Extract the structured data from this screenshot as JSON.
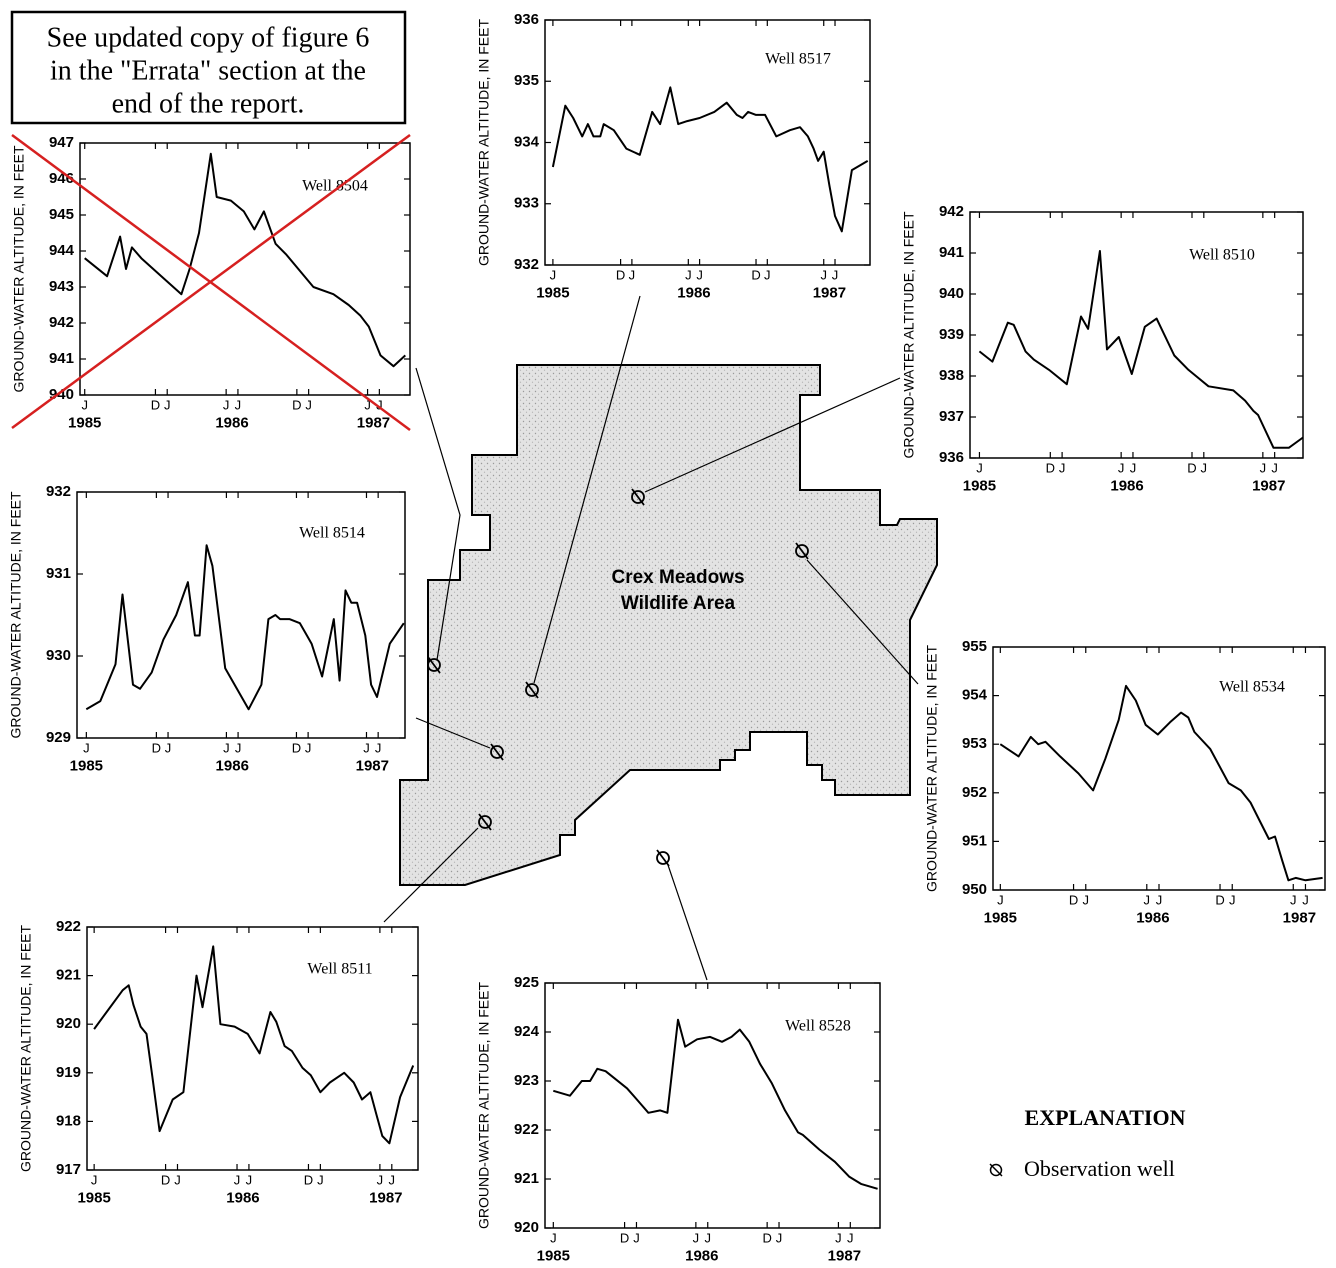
{
  "errata": [
    "See updated copy of figure 6",
    "in the \"Errata\" section at the",
    "end of the report."
  ],
  "map": {
    "label": [
      "Crex Meadows",
      "Wildlife Area"
    ]
  },
  "explanation": {
    "title": "EXPLANATION",
    "item": "Observation well"
  },
  "chart_data": [
    {
      "type": "line",
      "title": "Well 8504",
      "ylabel": "GROUND-WATER ALTITUDE, IN FEET",
      "color": "#000000",
      "x": [
        0,
        1.9,
        3.0,
        3.5,
        4.0,
        4.8,
        6.5,
        8.2,
        8.9,
        9.7,
        10.7,
        11.2,
        12.4,
        13.5,
        14.4,
        15.2,
        16.2,
        17.1,
        19.4,
        21.1,
        22.4,
        23.4,
        24.1,
        25.1,
        26.2,
        27.2
      ],
      "values": [
        943.8,
        943.3,
        944.4,
        943.5,
        944.1,
        943.8,
        943.3,
        942.8,
        943.5,
        944.5,
        946.7,
        945.5,
        945.4,
        945.1,
        944.6,
        945.1,
        944.2,
        943.9,
        943.0,
        942.8,
        942.5,
        942.2,
        941.9,
        941.1,
        940.8,
        941.1
      ],
      "xlim": [
        -0.4,
        27.6
      ],
      "ylim": [
        940,
        947
      ],
      "yticks": [
        940,
        941,
        942,
        943,
        944,
        945,
        946,
        947
      ],
      "xticks": [
        {
          "value": 0,
          "label": "J"
        },
        {
          "value": 6,
          "label": "D"
        },
        {
          "value": 7,
          "label": "J"
        },
        {
          "value": 12,
          "label": "J"
        },
        {
          "value": 13,
          "label": "J"
        },
        {
          "value": 18,
          "label": "D"
        },
        {
          "value": 19,
          "label": "J"
        },
        {
          "value": 24,
          "label": "J"
        },
        {
          "value": 25,
          "label": "J"
        }
      ],
      "year_ticks": [
        {
          "value": 0,
          "label": "1985"
        },
        {
          "value": 12.5,
          "label": "1986"
        },
        {
          "value": 24.5,
          "label": "1987"
        }
      ]
    },
    {
      "type": "line",
      "title": "Well 8517",
      "ylabel": "GROUND-WATER ALTITUDE, IN FEET",
      "color": "#000000",
      "x": [
        0,
        1.1,
        1.8,
        2.6,
        3.1,
        3.6,
        4.2,
        4.5,
        5.4,
        6.5,
        7.7,
        8.8,
        9.5,
        10.4,
        11.1,
        11.9,
        13.0,
        14.3,
        15.4,
        16.3,
        16.8,
        17.3,
        18.0,
        18.8,
        19.8,
        21.0,
        21.9,
        22.6,
        23.1,
        23.5,
        24.0,
        24.5,
        25.0,
        25.6,
        26.5,
        27.9
      ],
      "values": [
        933.6,
        934.6,
        934.4,
        934.1,
        934.3,
        934.1,
        934.1,
        934.3,
        934.2,
        933.9,
        933.8,
        934.5,
        934.3,
        934.9,
        934.3,
        934.35,
        934.4,
        934.5,
        934.65,
        934.45,
        934.4,
        934.5,
        934.45,
        934.45,
        934.1,
        934.2,
        934.25,
        934.1,
        933.9,
        933.7,
        933.85,
        933.3,
        932.8,
        932.55,
        933.55,
        933.7
      ],
      "xlim": [
        -0.7,
        28.1
      ],
      "ylim": [
        932,
        936
      ],
      "yticks": [
        932,
        933,
        934,
        935,
        936
      ],
      "xticks": [
        {
          "value": 0,
          "label": "J"
        },
        {
          "value": 6,
          "label": "D"
        },
        {
          "value": 7,
          "label": "J"
        },
        {
          "value": 12,
          "label": "J"
        },
        {
          "value": 13,
          "label": "J"
        },
        {
          "value": 18,
          "label": "D"
        },
        {
          "value": 19,
          "label": "J"
        },
        {
          "value": 24,
          "label": "J"
        },
        {
          "value": 25,
          "label": "J"
        }
      ],
      "year_ticks": [
        {
          "value": 0,
          "label": "1985"
        },
        {
          "value": 12.5,
          "label": "1986"
        },
        {
          "value": 24.5,
          "label": "1987"
        }
      ]
    },
    {
      "type": "line",
      "title": "Well 8510",
      "ylabel": "GROUND-WATER ALTITUDE, IN FEET",
      "color": "#000000",
      "x": [
        0,
        1.1,
        2.4,
        2.9,
        3.9,
        4.6,
        5.9,
        7.4,
        8.6,
        9.2,
        10.2,
        10.8,
        11.8,
        12.9,
        14.0,
        15.0,
        16.5,
        17.7,
        19.4,
        21.5,
        22.5,
        23.2,
        23.6,
        24.9,
        26.2,
        27.4
      ],
      "values": [
        938.6,
        938.35,
        939.3,
        939.25,
        938.6,
        938.4,
        938.15,
        937.8,
        939.45,
        939.15,
        941.05,
        938.65,
        938.95,
        938.05,
        939.2,
        939.4,
        938.5,
        938.15,
        937.75,
        937.65,
        937.4,
        937.15,
        937.05,
        936.25,
        936.25,
        936.5
      ],
      "xlim": [
        -0.8,
        27.4
      ],
      "ylim": [
        936,
        942
      ],
      "yticks": [
        936,
        937,
        938,
        939,
        940,
        941,
        942
      ],
      "xticks": [
        {
          "value": 0,
          "label": "J"
        },
        {
          "value": 6,
          "label": "D"
        },
        {
          "value": 7,
          "label": "J"
        },
        {
          "value": 12,
          "label": "J"
        },
        {
          "value": 13,
          "label": "J"
        },
        {
          "value": 18,
          "label": "D"
        },
        {
          "value": 19,
          "label": "J"
        },
        {
          "value": 24,
          "label": "J"
        },
        {
          "value": 25,
          "label": "J"
        }
      ],
      "year_ticks": [
        {
          "value": 0,
          "label": "1985"
        },
        {
          "value": 12.5,
          "label": "1986"
        },
        {
          "value": 24.5,
          "label": "1987"
        }
      ]
    },
    {
      "type": "line",
      "title": "Well 8514",
      "ylabel": "GROUND-WATER ALTITUDE, IN FEET",
      "color": "#000000",
      "x": [
        0,
        1.2,
        2.5,
        3.1,
        4.0,
        4.6,
        5.6,
        6.6,
        7.7,
        8.7,
        9.3,
        9.7,
        10.3,
        10.8,
        11.9,
        12.9,
        13.9,
        15.0,
        15.6,
        16.2,
        16.6,
        17.4,
        18.3,
        19.3,
        20.2,
        21.2,
        21.7,
        22.2,
        22.7,
        23.2,
        23.9,
        24.4,
        24.9,
        26.0,
        27.2
      ],
      "values": [
        929.35,
        929.45,
        929.9,
        930.75,
        929.65,
        929.6,
        929.8,
        930.2,
        930.5,
        930.9,
        930.25,
        930.25,
        931.35,
        931.1,
        929.85,
        929.6,
        929.35,
        929.65,
        930.45,
        930.5,
        930.45,
        930.45,
        930.4,
        930.15,
        929.75,
        930.45,
        929.7,
        930.8,
        930.65,
        930.65,
        930.25,
        929.65,
        929.5,
        930.15,
        930.4
      ],
      "xlim": [
        -0.8,
        27.3
      ],
      "ylim": [
        929,
        932
      ],
      "yticks": [
        929,
        930,
        931,
        932
      ],
      "xticks": [
        {
          "value": 0,
          "label": "J"
        },
        {
          "value": 6,
          "label": "D"
        },
        {
          "value": 7,
          "label": "J"
        },
        {
          "value": 12,
          "label": "J"
        },
        {
          "value": 13,
          "label": "J"
        },
        {
          "value": 18,
          "label": "D"
        },
        {
          "value": 19,
          "label": "J"
        },
        {
          "value": 24,
          "label": "J"
        },
        {
          "value": 25,
          "label": "J"
        }
      ],
      "year_ticks": [
        {
          "value": 0,
          "label": "1985"
        },
        {
          "value": 12.5,
          "label": "1986"
        },
        {
          "value": 24.5,
          "label": "1987"
        }
      ]
    },
    {
      "type": "line",
      "title": "Well 8534",
      "ylabel": "GROUND-WATER ALTITUDE, IN FEET",
      "color": "#000000",
      "x": [
        0,
        1.5,
        2.5,
        3.1,
        3.7,
        4.9,
        6.4,
        7.6,
        8.6,
        9.7,
        10.3,
        11.1,
        11.9,
        12.9,
        13.9,
        14.8,
        15.4,
        15.9,
        17.2,
        18.7,
        19.7,
        20.5,
        21.3,
        22.0,
        22.5,
        23.1,
        23.6,
        24.2,
        25.0,
        26.4
      ],
      "values": [
        953.0,
        952.75,
        953.15,
        953.0,
        953.05,
        952.75,
        952.4,
        952.05,
        952.7,
        953.5,
        954.2,
        953.9,
        953.4,
        953.2,
        953.45,
        953.65,
        953.55,
        953.25,
        952.9,
        952.2,
        952.05,
        951.8,
        951.4,
        951.05,
        951.1,
        950.6,
        950.2,
        950.25,
        950.2,
        950.25
      ],
      "xlim": [
        -0.6,
        26.6
      ],
      "ylim": [
        950,
        955
      ],
      "yticks": [
        950,
        951,
        952,
        953,
        954,
        955
      ],
      "xticks": [
        {
          "value": 0,
          "label": "J"
        },
        {
          "value": 6,
          "label": "D"
        },
        {
          "value": 7,
          "label": "J"
        },
        {
          "value": 12,
          "label": "J"
        },
        {
          "value": 13,
          "label": "J"
        },
        {
          "value": 18,
          "label": "D"
        },
        {
          "value": 19,
          "label": "J"
        },
        {
          "value": 24,
          "label": "J"
        },
        {
          "value": 25,
          "label": "J"
        }
      ],
      "year_ticks": [
        {
          "value": 0,
          "label": "1985"
        },
        {
          "value": 12.5,
          "label": "1986"
        },
        {
          "value": 24.5,
          "label": "1987"
        }
      ]
    },
    {
      "type": "line",
      "title": "Well 8511",
      "ylabel": "GROUND-WATER ALTITUDE, IN FEET",
      "color": "#000000",
      "x": [
        0,
        1.2,
        2.4,
        2.9,
        3.3,
        3.9,
        4.4,
        4.9,
        5.5,
        6.6,
        7.5,
        8.6,
        9.1,
        10.0,
        10.6,
        11.8,
        12.9,
        13.9,
        14.8,
        15.3,
        16.0,
        16.6,
        17.5,
        18.2,
        19.0,
        19.8,
        21.0,
        21.8,
        22.5,
        23.2,
        23.7,
        24.2,
        24.8,
        25.7,
        26.8
      ],
      "values": [
        919.9,
        920.3,
        920.7,
        920.8,
        920.4,
        919.95,
        919.8,
        918.9,
        917.8,
        918.45,
        918.6,
        921.0,
        920.35,
        921.6,
        920.0,
        919.95,
        919.8,
        919.4,
        920.25,
        920.05,
        919.55,
        919.45,
        919.1,
        918.95,
        918.6,
        918.8,
        919.0,
        918.8,
        918.45,
        918.6,
        918.15,
        917.7,
        917.55,
        918.5,
        919.15
      ],
      "xlim": [
        -0.6,
        27.2
      ],
      "ylim": [
        917,
        922
      ],
      "yticks": [
        917,
        918,
        919,
        920,
        921,
        922
      ],
      "xticks": [
        {
          "value": 0,
          "label": "J"
        },
        {
          "value": 6,
          "label": "D"
        },
        {
          "value": 7,
          "label": "J"
        },
        {
          "value": 12,
          "label": "J"
        },
        {
          "value": 13,
          "label": "J"
        },
        {
          "value": 18,
          "label": "D"
        },
        {
          "value": 19,
          "label": "J"
        },
        {
          "value": 24,
          "label": "J"
        },
        {
          "value": 25,
          "label": "J"
        }
      ],
      "year_ticks": [
        {
          "value": 0,
          "label": "1985"
        },
        {
          "value": 12.5,
          "label": "1986"
        },
        {
          "value": 24.5,
          "label": "1987"
        }
      ]
    },
    {
      "type": "line",
      "title": "Well 8528",
      "ylabel": "GROUND-WATER ALTITUDE, IN FEET",
      "color": "#000000",
      "x": [
        0,
        1.4,
        2.4,
        3.1,
        3.7,
        4.4,
        6.2,
        7.3,
        8.0,
        9.0,
        9.6,
        10.5,
        11.1,
        12.1,
        13.2,
        14.2,
        15.0,
        15.7,
        16.5,
        17.4,
        18.4,
        19.5,
        20.6,
        21.0,
        22.4,
        23.7,
        24.9,
        25.9,
        27.3
      ],
      "values": [
        922.8,
        922.7,
        923.0,
        923.0,
        923.25,
        923.2,
        922.85,
        922.55,
        922.35,
        922.4,
        922.35,
        924.25,
        923.7,
        923.85,
        923.9,
        923.8,
        923.9,
        924.05,
        923.8,
        923.35,
        922.95,
        922.4,
        921.95,
        921.9,
        921.6,
        921.35,
        921.05,
        920.9,
        920.8
      ],
      "xlim": [
        -0.7,
        27.5
      ],
      "ylim": [
        920,
        925
      ],
      "yticks": [
        920,
        921,
        922,
        923,
        924,
        925
      ],
      "xticks": [
        {
          "value": 0,
          "label": "J"
        },
        {
          "value": 6,
          "label": "D"
        },
        {
          "value": 7,
          "label": "J"
        },
        {
          "value": 12,
          "label": "J"
        },
        {
          "value": 13,
          "label": "J"
        },
        {
          "value": 18,
          "label": "D"
        },
        {
          "value": 19,
          "label": "J"
        },
        {
          "value": 24,
          "label": "J"
        },
        {
          "value": 25,
          "label": "J"
        }
      ],
      "year_ticks": [
        {
          "value": 0,
          "label": "1985"
        },
        {
          "value": 12.5,
          "label": "1986"
        },
        {
          "value": 24.5,
          "label": "1987"
        }
      ]
    }
  ]
}
